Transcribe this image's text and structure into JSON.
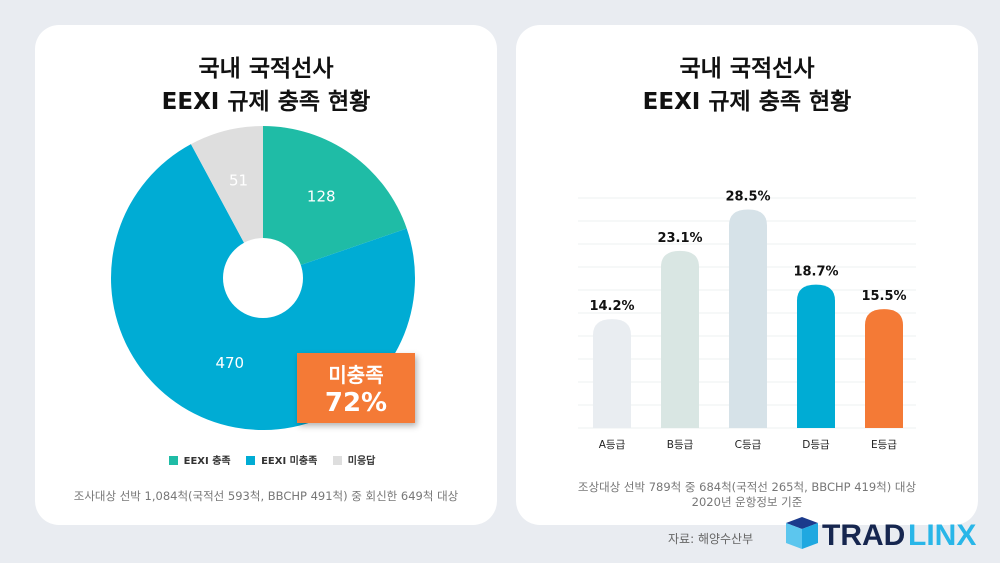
{
  "chart_data": [
    {
      "type": "pie",
      "title": "국내 국적선사\nEEXI 규제 충족 현황",
      "title_lines": [
        "국내 국적선사",
        "EEXI 규제 충족 현황"
      ],
      "slices": [
        {
          "name": "EEXI 충족",
          "value": 128,
          "color": "#1fbca6"
        },
        {
          "name": "EEXI 미충족",
          "value": 470,
          "color": "#00acd4"
        },
        {
          "name": "미응답",
          "value": 51,
          "color": "#dedede"
        }
      ],
      "donut": true,
      "legend_placement": "bottom",
      "annotation": {
        "label": "미충족",
        "value": "72%",
        "color": "#f47a36"
      },
      "note": "조사대상 선박 1,084척(국적선 593척, BBCHP 491척) 중 회신한 649척 대상"
    },
    {
      "type": "bar",
      "title_lines": [
        "국내 국적선사",
        "EEXI 규제 충족 현황"
      ],
      "categories": [
        "A등급",
        "B등급",
        "C등급",
        "D등급",
        "E등급"
      ],
      "values": [
        14.2,
        23.1,
        28.5,
        18.7,
        15.5
      ],
      "labels": [
        "14.2%",
        "23.1%",
        "28.5%",
        "18.7%",
        "15.5%"
      ],
      "colors": [
        "#e9edf1",
        "#d9e6e3",
        "#d6e2e8",
        "#00acd4",
        "#f47a36"
      ],
      "ylim": [
        0,
        30
      ],
      "grid": true,
      "note_lines": [
        "조상대상 선박 789척 중 684척(국적선 265척, BBCHP 419척) 대상",
        "2020년 운항정보 기준"
      ]
    }
  ],
  "source": "자료: 해양수산부",
  "logo": {
    "text1": "TRAD",
    "text2": "LINX"
  }
}
